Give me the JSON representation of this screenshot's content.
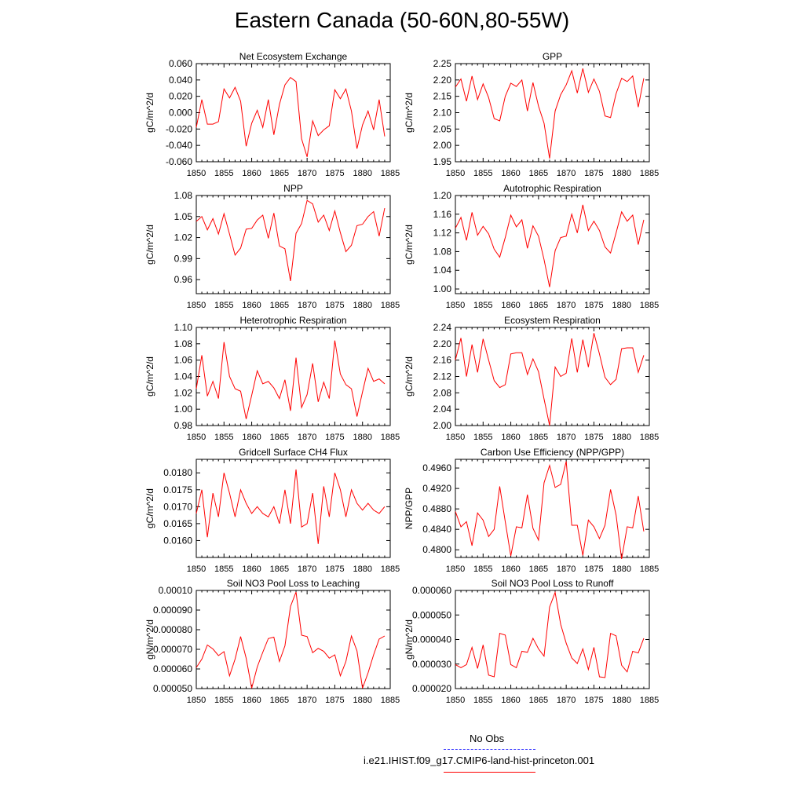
{
  "title": "Eastern Canada (50-60N,80-55W)",
  "colors": {
    "model": "#ff0000",
    "obs": "#4040ff",
    "axis": "#000000"
  },
  "legend": {
    "obs_label": "No Obs",
    "model_label": "i.e21.IHIST.f09_g17.CMIP6-land-hist-princeton.001"
  },
  "chart_data": [
    {
      "type": "line",
      "title": "Net Ecosystem Exchange",
      "ylabel": "gC/m^2/d",
      "xlim": [
        1850,
        1885
      ],
      "ylim": [
        -0.06,
        0.06
      ],
      "x_ticks": [
        "1850",
        "1855",
        "1860",
        "1865",
        "1870",
        "1875",
        "1880",
        "1885"
      ],
      "y_ticks": [
        -0.06,
        -0.04,
        -0.02,
        0.0,
        0.02,
        0.04,
        0.06
      ],
      "y_tick_labels": [
        "-0.060",
        "-0.040",
        "-0.020",
        "0.000",
        "0.020",
        "0.040",
        "0.060"
      ],
      "x": [
        1850,
        1851,
        1852,
        1853,
        1854,
        1855,
        1856,
        1857,
        1858,
        1859,
        1860,
        1861,
        1862,
        1863,
        1864,
        1865,
        1866,
        1867,
        1868,
        1869,
        1870,
        1871,
        1872,
        1873,
        1874,
        1875,
        1876,
        1877,
        1878,
        1879,
        1880,
        1881,
        1882,
        1883,
        1884
      ],
      "series": [
        {
          "values": [
            -0.018,
            0.016,
            -0.014,
            -0.014,
            -0.011,
            0.029,
            0.018,
            0.031,
            0.014,
            -0.041,
            -0.013,
            0.003,
            -0.018,
            0.016,
            -0.027,
            0.01,
            0.034,
            0.043,
            0.038,
            -0.032,
            -0.054,
            -0.01,
            -0.028,
            -0.021,
            -0.016,
            0.028,
            0.017,
            0.029,
            0.002,
            -0.044,
            -0.015,
            0.002,
            -0.021,
            0.016,
            -0.029
          ]
        }
      ]
    },
    {
      "type": "line",
      "title": "GPP",
      "ylabel": "gC/m^2/d",
      "xlim": [
        1850,
        1885
      ],
      "ylim": [
        1.95,
        2.25
      ],
      "x_ticks": [
        "1850",
        "1855",
        "1860",
        "1865",
        "1870",
        "1875",
        "1880",
        "1885"
      ],
      "y_ticks": [
        1.95,
        2.0,
        2.05,
        2.1,
        2.15,
        2.2,
        2.25
      ],
      "y_tick_labels": [
        "1.95",
        "2.00",
        "2.05",
        "2.10",
        "2.15",
        "2.20",
        "2.25"
      ],
      "x": [
        1850,
        1851,
        1852,
        1853,
        1854,
        1855,
        1856,
        1857,
        1858,
        1859,
        1860,
        1861,
        1862,
        1863,
        1864,
        1865,
        1866,
        1867,
        1868,
        1869,
        1870,
        1871,
        1872,
        1873,
        1874,
        1875,
        1876,
        1877,
        1878,
        1879,
        1880,
        1881,
        1882,
        1883,
        1884
      ],
      "series": [
        {
          "values": [
            2.178,
            2.203,
            2.135,
            2.212,
            2.14,
            2.188,
            2.146,
            2.082,
            2.075,
            2.15,
            2.19,
            2.18,
            2.2,
            2.105,
            2.192,
            2.12,
            2.068,
            1.96,
            2.105,
            2.155,
            2.185,
            2.228,
            2.16,
            2.235,
            2.162,
            2.203,
            2.165,
            2.09,
            2.085,
            2.158,
            2.205,
            2.195,
            2.212,
            2.117,
            2.205
          ]
        }
      ]
    },
    {
      "type": "line",
      "title": "NPP",
      "ylabel": "gC/m^2/d",
      "xlim": [
        1850,
        1885
      ],
      "ylim": [
        0.94,
        1.08
      ],
      "x_ticks": [
        "1850",
        "1855",
        "1860",
        "1865",
        "1870",
        "1875",
        "1880",
        "1885"
      ],
      "y_ticks": [
        0.96,
        0.99,
        1.02,
        1.05,
        1.08
      ],
      "y_tick_labels": [
        "0.96",
        "0.99",
        "1.02",
        "1.05",
        "1.08"
      ],
      "x": [
        1850,
        1851,
        1852,
        1853,
        1854,
        1855,
        1856,
        1857,
        1858,
        1859,
        1860,
        1861,
        1862,
        1863,
        1864,
        1865,
        1866,
        1867,
        1868,
        1869,
        1870,
        1871,
        1872,
        1873,
        1874,
        1875,
        1876,
        1877,
        1878,
        1879,
        1880,
        1881,
        1882,
        1883,
        1884
      ],
      "series": [
        {
          "values": [
            1.043,
            1.05,
            1.031,
            1.047,
            1.025,
            1.054,
            1.025,
            0.995,
            1.005,
            1.032,
            1.033,
            1.045,
            1.052,
            1.019,
            1.055,
            1.008,
            1.004,
            0.958,
            1.026,
            1.04,
            1.073,
            1.068,
            1.042,
            1.052,
            1.03,
            1.058,
            1.027,
            1.0,
            1.009,
            1.037,
            1.039,
            1.05,
            1.057,
            1.022,
            1.062
          ]
        }
      ]
    },
    {
      "type": "line",
      "title": "Autotrophic Respiration",
      "ylabel": "gC/m^2/d",
      "xlim": [
        1850,
        1885
      ],
      "ylim": [
        0.99,
        1.2
      ],
      "x_ticks": [
        "1850",
        "1855",
        "1860",
        "1865",
        "1870",
        "1875",
        "1880",
        "1885"
      ],
      "y_ticks": [
        1.0,
        1.04,
        1.08,
        1.12,
        1.16,
        1.2
      ],
      "y_tick_labels": [
        "1.00",
        "1.04",
        "1.08",
        "1.12",
        "1.16",
        "1.20"
      ],
      "x": [
        1850,
        1851,
        1852,
        1853,
        1854,
        1855,
        1856,
        1857,
        1858,
        1859,
        1860,
        1861,
        1862,
        1863,
        1864,
        1865,
        1866,
        1867,
        1868,
        1869,
        1870,
        1871,
        1872,
        1873,
        1874,
        1875,
        1876,
        1877,
        1878,
        1879,
        1880,
        1881,
        1882,
        1883,
        1884
      ],
      "series": [
        {
          "values": [
            1.13,
            1.153,
            1.104,
            1.164,
            1.115,
            1.134,
            1.118,
            1.085,
            1.068,
            1.11,
            1.158,
            1.133,
            1.148,
            1.087,
            1.135,
            1.113,
            1.063,
            1.004,
            1.082,
            1.11,
            1.113,
            1.16,
            1.12,
            1.18,
            1.125,
            1.145,
            1.125,
            1.09,
            1.077,
            1.12,
            1.165,
            1.145,
            1.158,
            1.095,
            1.148
          ]
        }
      ]
    },
    {
      "type": "line",
      "title": "Heterotrophic Respiration",
      "ylabel": "gC/m^2/d",
      "xlim": [
        1850,
        1885
      ],
      "ylim": [
        0.98,
        1.1
      ],
      "x_ticks": [
        "1850",
        "1855",
        "1860",
        "1865",
        "1870",
        "1875",
        "1880",
        "1885"
      ],
      "y_ticks": [
        0.98,
        1.0,
        1.02,
        1.04,
        1.06,
        1.08,
        1.1
      ],
      "y_tick_labels": [
        "0.98",
        "1.00",
        "1.02",
        "1.04",
        "1.06",
        "1.08",
        "1.10"
      ],
      "x": [
        1850,
        1851,
        1852,
        1853,
        1854,
        1855,
        1856,
        1857,
        1858,
        1859,
        1860,
        1861,
        1862,
        1863,
        1864,
        1865,
        1866,
        1867,
        1868,
        1869,
        1870,
        1871,
        1872,
        1873,
        1874,
        1875,
        1876,
        1877,
        1878,
        1879,
        1880,
        1881,
        1882,
        1883,
        1884
      ],
      "series": [
        {
          "values": [
            1.025,
            1.066,
            1.016,
            1.034,
            1.013,
            1.082,
            1.04,
            1.025,
            1.022,
            0.988,
            1.017,
            1.047,
            1.031,
            1.034,
            1.026,
            1.013,
            1.036,
            0.998,
            1.063,
            1.002,
            1.018,
            1.056,
            1.009,
            1.033,
            1.013,
            1.084,
            1.043,
            1.03,
            1.025,
            0.991,
            1.021,
            1.05,
            1.034,
            1.037,
            1.031
          ]
        }
      ]
    },
    {
      "type": "line",
      "title": "Ecosystem Respiration",
      "ylabel": "gC/m^2/d",
      "xlim": [
        1850,
        1885
      ],
      "ylim": [
        2.0,
        2.24
      ],
      "x_ticks": [
        "1850",
        "1855",
        "1860",
        "1865",
        "1870",
        "1875",
        "1880",
        "1885"
      ],
      "y_ticks": [
        2.0,
        2.04,
        2.08,
        2.12,
        2.16,
        2.2,
        2.24
      ],
      "y_tick_labels": [
        "2.00",
        "2.04",
        "2.08",
        "2.12",
        "2.16",
        "2.20",
        "2.24"
      ],
      "x": [
        1850,
        1851,
        1852,
        1853,
        1854,
        1855,
        1856,
        1857,
        1858,
        1859,
        1860,
        1861,
        1862,
        1863,
        1864,
        1865,
        1866,
        1867,
        1868,
        1869,
        1870,
        1871,
        1872,
        1873,
        1874,
        1875,
        1876,
        1877,
        1878,
        1879,
        1880,
        1881,
        1882,
        1883,
        1884
      ],
      "series": [
        {
          "values": [
            2.16,
            2.214,
            2.12,
            2.198,
            2.13,
            2.212,
            2.16,
            2.11,
            2.093,
            2.1,
            2.175,
            2.178,
            2.178,
            2.125,
            2.163,
            2.132,
            2.065,
            2.0,
            2.143,
            2.12,
            2.128,
            2.213,
            2.13,
            2.21,
            2.143,
            2.226,
            2.175,
            2.118,
            2.1,
            2.113,
            2.188,
            2.19,
            2.19,
            2.13,
            2.172
          ]
        }
      ]
    },
    {
      "type": "line",
      "title": "Gridcell Surface CH4 Flux",
      "ylabel": "gC/m^2/d",
      "xlim": [
        1850,
        1885
      ],
      "ylim": [
        0.0155,
        0.0184
      ],
      "x_ticks": [
        "1850",
        "1855",
        "1860",
        "1865",
        "1870",
        "1875",
        "1880",
        "1885"
      ],
      "y_ticks": [
        0.016,
        0.0165,
        0.017,
        0.0175,
        0.018
      ],
      "y_tick_labels": [
        "0.0160",
        "0.0165",
        "0.0170",
        "0.0175",
        "0.0180"
      ],
      "x": [
        1850,
        1851,
        1852,
        1853,
        1854,
        1855,
        1856,
        1857,
        1858,
        1859,
        1860,
        1861,
        1862,
        1863,
        1864,
        1865,
        1866,
        1867,
        1868,
        1869,
        1870,
        1871,
        1872,
        1873,
        1874,
        1875,
        1876,
        1877,
        1878,
        1879,
        1880,
        1881,
        1882,
        1883,
        1884
      ],
      "series": [
        {
          "values": [
            0.0168,
            0.0175,
            0.0161,
            0.0174,
            0.0167,
            0.018,
            0.0174,
            0.0167,
            0.0175,
            0.0171,
            0.0168,
            0.017,
            0.0168,
            0.0167,
            0.017,
            0.0165,
            0.0175,
            0.0165,
            0.0181,
            0.0164,
            0.0165,
            0.0174,
            0.0159,
            0.0176,
            0.0167,
            0.018,
            0.0175,
            0.0167,
            0.0175,
            0.0171,
            0.0169,
            0.0171,
            0.0169,
            0.0168,
            0.017
          ]
        }
      ]
    },
    {
      "type": "line",
      "title": "Carbon Use Efficiency (NPP/GPP)",
      "ylabel": "NPP/GPP",
      "xlim": [
        1850,
        1885
      ],
      "ylim": [
        0.4785,
        0.4977
      ],
      "x_ticks": [
        "1850",
        "1855",
        "1860",
        "1865",
        "1870",
        "1875",
        "1880",
        "1885"
      ],
      "y_ticks": [
        0.48,
        0.484,
        0.488,
        0.492,
        0.496
      ],
      "y_tick_labels": [
        "0.4800",
        "0.4840",
        "0.4880",
        "0.4920",
        "0.4960"
      ],
      "x": [
        1850,
        1851,
        1852,
        1853,
        1854,
        1855,
        1856,
        1857,
        1858,
        1859,
        1860,
        1861,
        1862,
        1863,
        1864,
        1865,
        1866,
        1867,
        1868,
        1869,
        1870,
        1871,
        1872,
        1873,
        1874,
        1875,
        1876,
        1877,
        1878,
        1879,
        1880,
        1881,
        1882,
        1883,
        1884
      ],
      "series": [
        {
          "values": [
            0.4875,
            0.4845,
            0.4855,
            0.4808,
            0.4872,
            0.4858,
            0.4826,
            0.484,
            0.4924,
            0.4855,
            0.4788,
            0.4845,
            0.4843,
            0.4908,
            0.4842,
            0.4819,
            0.4931,
            0.4965,
            0.4922,
            0.4928,
            0.4973,
            0.4848,
            0.4848,
            0.4789,
            0.4858,
            0.4845,
            0.4822,
            0.4848,
            0.4918,
            0.4868,
            0.4782,
            0.4845,
            0.4843,
            0.4905,
            0.4836
          ]
        }
      ]
    },
    {
      "type": "line",
      "title": "Soil NO3 Pool Loss to Leaching",
      "ylabel": "gN/m^2/d",
      "xlim": [
        1850,
        1885
      ],
      "ylim": [
        5e-05,
        0.0001
      ],
      "x_ticks": [
        "1850",
        "1855",
        "1860",
        "1865",
        "1870",
        "1875",
        "1880",
        "1885"
      ],
      "y_ticks": [
        5e-05,
        6e-05,
        7e-05,
        8e-05,
        9e-05,
        0.0001
      ],
      "y_tick_labels": [
        "0.000050",
        "0.000060",
        "0.000070",
        "0.000080",
        "0.000090",
        "0.00010"
      ],
      "x": [
        1850,
        1851,
        1852,
        1853,
        1854,
        1855,
        1856,
        1857,
        1858,
        1859,
        1860,
        1861,
        1862,
        1863,
        1864,
        1865,
        1866,
        1867,
        1868,
        1869,
        1870,
        1871,
        1872,
        1873,
        1874,
        1875,
        1876,
        1877,
        1878,
        1879,
        1880,
        1881,
        1882,
        1883,
        1884
      ],
      "series": [
        {
          "values": [
            6.07e-05,
            6.5e-05,
            7.22e-05,
            7.02e-05,
            6.68e-05,
            6.88e-05,
            5.65e-05,
            6.5e-05,
            7.65e-05,
            6.55e-05,
            5.02e-05,
            6.1e-05,
            6.85e-05,
            7.55e-05,
            7.62e-05,
            6.38e-05,
            7.18e-05,
            9.18e-05,
            9.92e-05,
            7.72e-05,
            7.65e-05,
            6.83e-05,
            7.05e-05,
            6.9e-05,
            6.55e-05,
            6.72e-05,
            5.65e-05,
            6.38e-05,
            7.68e-05,
            6.92e-05,
            5.02e-05,
            5.8e-05,
            6.72e-05,
            7.52e-05,
            7.68e-05
          ]
        }
      ]
    },
    {
      "type": "line",
      "title": "Soil NO3 Pool Loss to Runoff",
      "ylabel": "gN/m^2/d",
      "xlim": [
        1850,
        1885
      ],
      "ylim": [
        2e-05,
        6e-05
      ],
      "x_ticks": [
        "1850",
        "1855",
        "1860",
        "1865",
        "1870",
        "1875",
        "1880",
        "1885"
      ],
      "y_ticks": [
        2e-05,
        3e-05,
        4e-05,
        5e-05,
        6e-05
      ],
      "y_tick_labels": [
        "0.000020",
        "0.000030",
        "0.000040",
        "0.000050",
        "0.000060"
      ],
      "x": [
        1850,
        1851,
        1852,
        1853,
        1854,
        1855,
        1856,
        1857,
        1858,
        1859,
        1860,
        1861,
        1862,
        1863,
        1864,
        1865,
        1866,
        1867,
        1868,
        1869,
        1870,
        1871,
        1872,
        1873,
        1874,
        1875,
        1876,
        1877,
        1878,
        1879,
        1880,
        1881,
        1882,
        1883,
        1884
      ],
      "series": [
        {
          "values": [
            2.98e-05,
            2.85e-05,
            2.98e-05,
            3.68e-05,
            2.82e-05,
            3.78e-05,
            2.55e-05,
            2.48e-05,
            4.25e-05,
            4.18e-05,
            2.98e-05,
            2.85e-05,
            3.52e-05,
            3.48e-05,
            4.05e-05,
            3.62e-05,
            3.32e-05,
            5.32e-05,
            5.92e-05,
            4.62e-05,
            3.85e-05,
            3.25e-05,
            3.02e-05,
            3.62e-05,
            2.78e-05,
            3.68e-05,
            2.48e-05,
            2.45e-05,
            4.25e-05,
            4.15e-05,
            2.95e-05,
            2.68e-05,
            3.52e-05,
            3.45e-05,
            4.05e-05
          ]
        }
      ]
    }
  ]
}
